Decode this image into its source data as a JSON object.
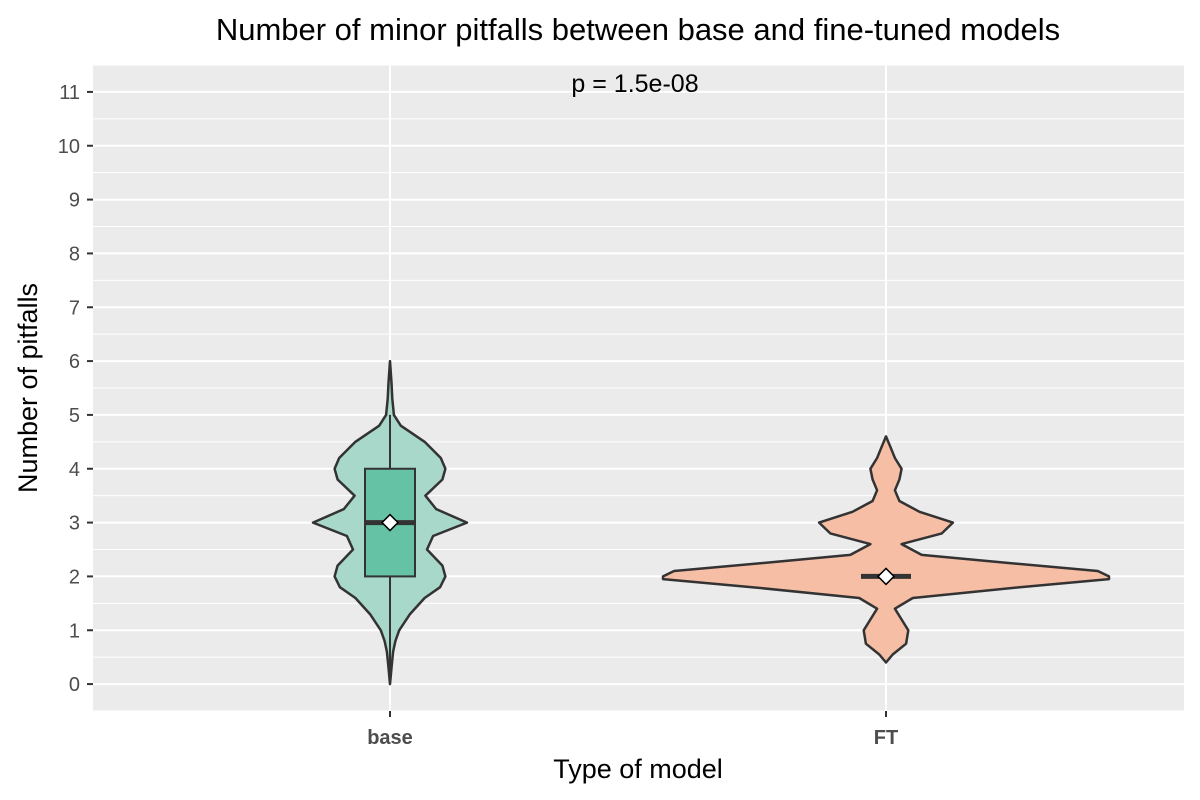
{
  "chart_data": {
    "type": "violin",
    "title": "Number of minor pitfalls between base and fine-tuned models",
    "xlabel": "Type of model",
    "ylabel": "Number of pitfalls",
    "annotation": "p = 1.5e-08",
    "categories": [
      "base",
      "FT"
    ],
    "ylim": [
      -0.5,
      11.5
    ],
    "yticks": [
      0,
      1,
      2,
      3,
      4,
      5,
      6,
      7,
      8,
      9,
      10,
      11
    ],
    "grid": true,
    "colors": {
      "panel": "#ebebeb",
      "grid": "#ffffff",
      "outline": "#333333",
      "tick_text": "#4d4d4d"
    },
    "series": [
      {
        "category": "base",
        "violin_fill": "#a8d8c9",
        "box_fill": "#66c2a5",
        "min": 0,
        "max": 6,
        "q1": 2,
        "median": 3,
        "q3": 4,
        "mean": 3,
        "whisker_low": 0,
        "whisker_high": 5,
        "density": [
          [
            0.0,
            0.0
          ],
          [
            0.3,
            0.02
          ],
          [
            0.6,
            0.04
          ],
          [
            0.8,
            0.07
          ],
          [
            1.0,
            0.12
          ],
          [
            1.3,
            0.26
          ],
          [
            1.6,
            0.45
          ],
          [
            1.8,
            0.65
          ],
          [
            2.0,
            0.72
          ],
          [
            2.2,
            0.68
          ],
          [
            2.5,
            0.48
          ],
          [
            2.75,
            0.56
          ],
          [
            3.0,
            1.0
          ],
          [
            3.25,
            0.6
          ],
          [
            3.5,
            0.46
          ],
          [
            3.8,
            0.68
          ],
          [
            4.0,
            0.72
          ],
          [
            4.2,
            0.66
          ],
          [
            4.5,
            0.45
          ],
          [
            4.8,
            0.14
          ],
          [
            5.0,
            0.05
          ],
          [
            5.3,
            0.03
          ],
          [
            5.6,
            0.02
          ],
          [
            6.0,
            0.0
          ]
        ]
      },
      {
        "category": "FT",
        "violin_fill": "#f7bea6",
        "box_fill": "#fc8d62",
        "min": 0.4,
        "max": 4.6,
        "q1": 2,
        "median": 2,
        "q3": 2,
        "mean": 2,
        "whisker_low": 2,
        "whisker_high": 2,
        "density": [
          [
            0.4,
            0.0
          ],
          [
            0.55,
            0.03
          ],
          [
            0.75,
            0.09
          ],
          [
            1.0,
            0.1
          ],
          [
            1.2,
            0.07
          ],
          [
            1.4,
            0.04
          ],
          [
            1.6,
            0.12
          ],
          [
            1.8,
            0.6
          ],
          [
            1.95,
            1.0
          ],
          [
            2.0,
            1.0
          ],
          [
            2.1,
            0.95
          ],
          [
            2.25,
            0.55
          ],
          [
            2.4,
            0.16
          ],
          [
            2.6,
            0.07
          ],
          [
            2.8,
            0.25
          ],
          [
            3.0,
            0.3
          ],
          [
            3.2,
            0.15
          ],
          [
            3.4,
            0.06
          ],
          [
            3.6,
            0.04
          ],
          [
            3.8,
            0.06
          ],
          [
            4.0,
            0.07
          ],
          [
            4.2,
            0.04
          ],
          [
            4.4,
            0.02
          ],
          [
            4.6,
            0.0
          ]
        ]
      }
    ]
  }
}
